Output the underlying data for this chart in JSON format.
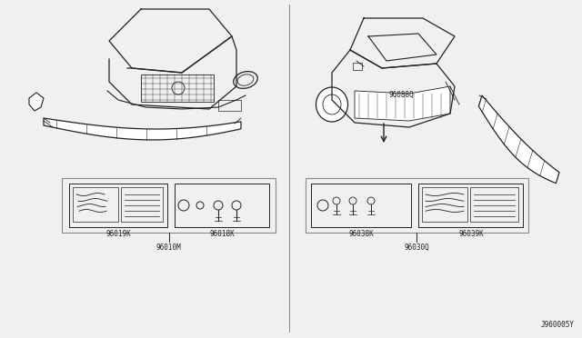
{
  "bg_color": "#f0f0f0",
  "line_color": "#222222",
  "border_color": "#888888",
  "text_color": "#222222",
  "left_labels": {
    "box1_label": "96019K",
    "box2_label": "96018K",
    "group_label": "96010M"
  },
  "right_labels": {
    "part_label": "96088Q",
    "box1_label": "96038K",
    "box2_label": "96039K",
    "group_label": "96030Q",
    "corner_label": "J960005Y"
  },
  "font_size": 5.5
}
